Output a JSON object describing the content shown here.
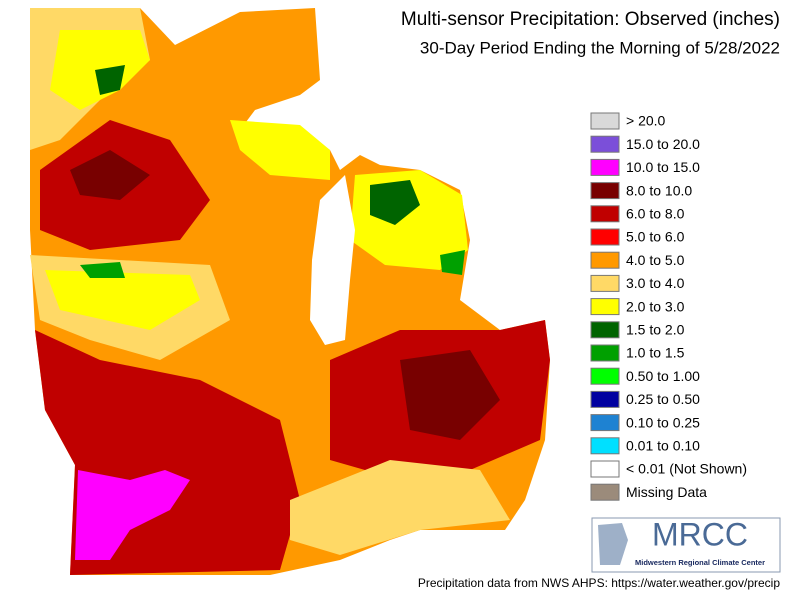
{
  "title": "Multi-sensor Precipitation: Observed (inches)",
  "subtitle": "30-Day Period Ending the Morning of 5/28/2022",
  "legend": [
    {
      "label": "> 20.0",
      "color": "#d9d9d9"
    },
    {
      "label": "15.0 to 20.0",
      "color": "#7b4fd9"
    },
    {
      "label": "10.0 to 15.0",
      "color": "#ff00ff"
    },
    {
      "label": "8.0 to 10.0",
      "color": "#780000"
    },
    {
      "label": "6.0 to 8.0",
      "color": "#c00000"
    },
    {
      "label": "5.0 to 6.0",
      "color": "#ff0000"
    },
    {
      "label": "4.0 to 5.0",
      "color": "#ff9900"
    },
    {
      "label": "3.0 to 4.0",
      "color": "#ffd966"
    },
    {
      "label": "2.0 to 3.0",
      "color": "#ffff00"
    },
    {
      "label": "1.5 to 2.0",
      "color": "#006400"
    },
    {
      "label": "1.0 to 1.5",
      "color": "#00a000"
    },
    {
      "label": "0.50 to 1.00",
      "color": "#00ff00"
    },
    {
      "label": "0.25 to 0.50",
      "color": "#0000a0"
    },
    {
      "label": "0.10 to 0.25",
      "color": "#1e82d2"
    },
    {
      "label": "0.01 to 0.10",
      "color": "#00e0ff"
    },
    {
      "label": "< 0.01 (Not Shown)",
      "color": "#ffffff"
    },
    {
      "label": "Missing Data",
      "color": "#9b8b7b"
    }
  ],
  "logo": {
    "text": "MRCC",
    "subtext": "Midwestern Regional Climate Center"
  },
  "footer": "Precipitation data from NWS AHPS: https://water.weather.gov/precip"
}
